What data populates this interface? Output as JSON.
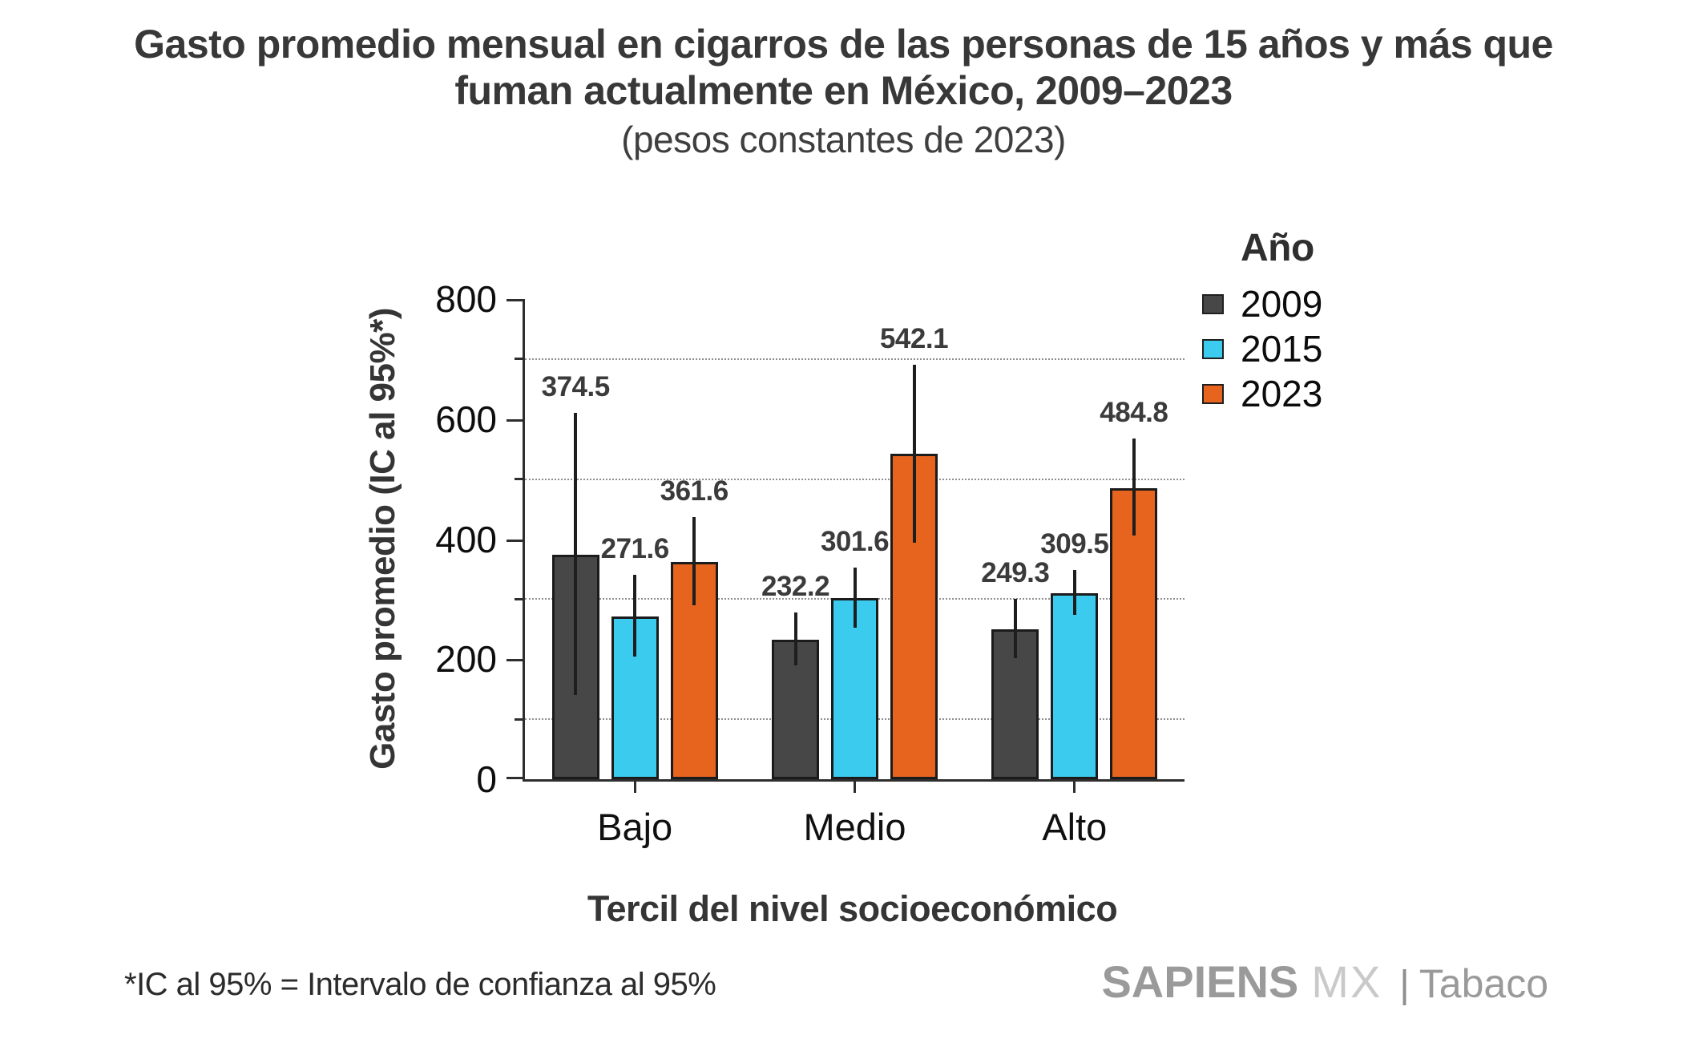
{
  "title": {
    "line1": "Gasto promedio mensual en cigarros de las personas de 15 años  y más que",
    "line2": "fuman actualmente en México, 2009–2023",
    "subtitle": "(pesos constantes de 2023)"
  },
  "chart_data": {
    "type": "bar",
    "categories": [
      "Bajo",
      "Medio",
      "Alto"
    ],
    "series": [
      {
        "name": "2009",
        "color": "#474747",
        "values": [
          374.5,
          232.2,
          249.3
        ],
        "ci_low": [
          140,
          190,
          202
        ],
        "ci_high": [
          611,
          278,
          300
        ]
      },
      {
        "name": "2015",
        "color": "#3BCBEE",
        "values": [
          271.6,
          301.6,
          309.5
        ],
        "ci_low": [
          205,
          252,
          274
        ],
        "ci_high": [
          340,
          353,
          348
        ]
      },
      {
        "name": "2023",
        "color": "#E7641F",
        "values": [
          361.6,
          542.1,
          484.8
        ],
        "ci_low": [
          290,
          394,
          406
        ],
        "ci_high": [
          437,
          690,
          567
        ]
      }
    ],
    "xlabel": "Tercil del nivel socioeconómico",
    "ylabel": "Gasto promedio (IC al 95%*)",
    "ylim": [
      0,
      800
    ],
    "yticks_major": [
      0,
      200,
      400,
      600,
      800
    ],
    "gridline_values": [
      100,
      300,
      500,
      700
    ],
    "grid": "horizontal dotted at minor ticks",
    "legend_title": "Año",
    "legend_position": "right",
    "error_bars": "95% confidence intervals, no caps"
  },
  "footer": {
    "note": "*IC al 95% = Intervalo de confianza al 95%",
    "logo": {
      "part1": "SAPIENS",
      "part2": "MX",
      "separator": "|",
      "part3": "Tabaco"
    }
  }
}
